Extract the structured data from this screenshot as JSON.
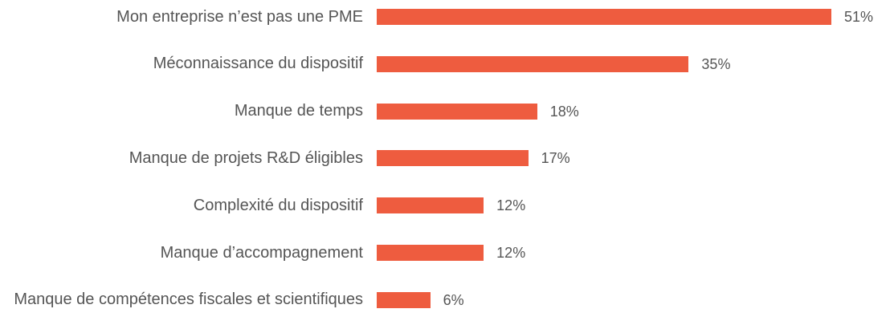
{
  "chart_data": {
    "type": "bar",
    "orientation": "horizontal",
    "color": "#ee5c3f",
    "categories": [
      "Mon entreprise n’est pas une PME",
      "Méconnaissance du dispositif",
      "Manque de temps",
      "Manque de projets R&D éligibles",
      "Complexité du dispositif",
      "Manque d’accompagnement",
      "Manque de compétences fiscales et scientifiques"
    ],
    "values": [
      51,
      35,
      18,
      17,
      12,
      12,
      6
    ],
    "value_labels": [
      "51%",
      "35%",
      "18%",
      "17%",
      "12%",
      "12%",
      "6%"
    ]
  }
}
